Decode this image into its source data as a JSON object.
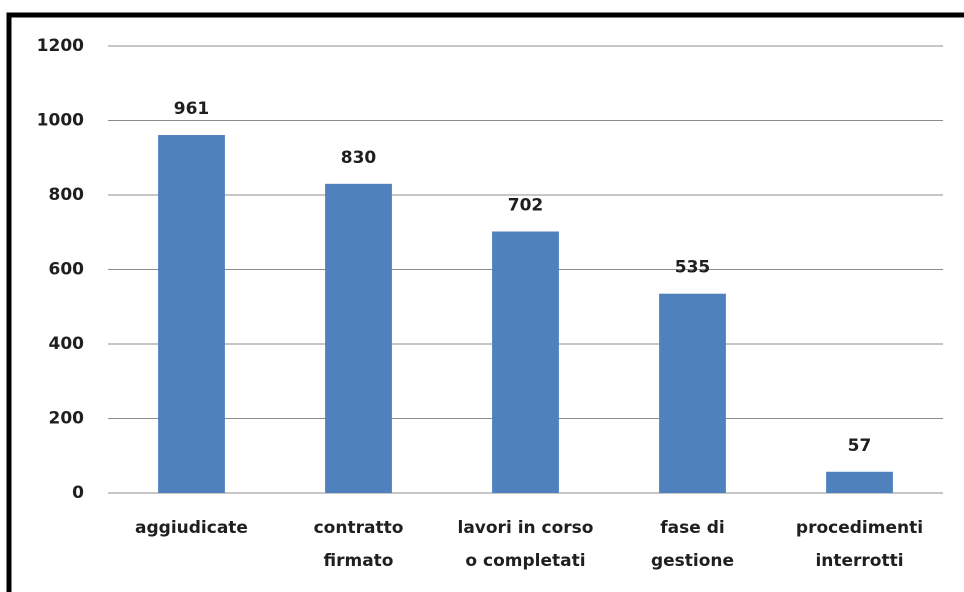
{
  "chart_data": {
    "type": "bar",
    "categories": [
      "aggiudicate",
      "contratto\nfirmato",
      "lavori in corso\no completati",
      "fase di\ngestione",
      "procedimenti\ninterrotti"
    ],
    "values": [
      961,
      830,
      702,
      535,
      57
    ],
    "color": "#4f81bd",
    "ylim": [
      0,
      1200
    ],
    "yticks": [
      0,
      200,
      400,
      600,
      800,
      1000,
      1200
    ],
    "grid": true
  }
}
